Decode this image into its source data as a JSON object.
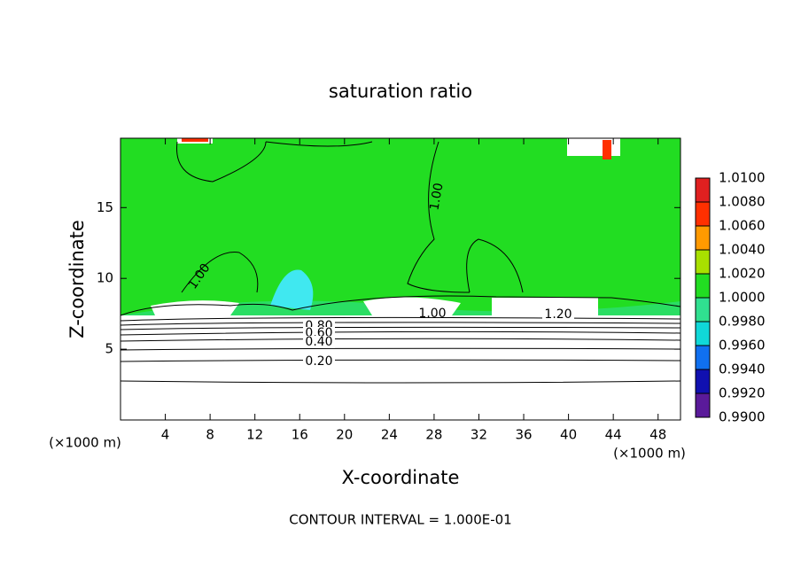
{
  "chart_data": {
    "type": "contour",
    "title": "saturation ratio",
    "x_label": "X-coordinate",
    "y_label": "Z-coordinate",
    "x_unit": "(×1000 m)",
    "y_unit": "(×1000 m)",
    "footer": "CONTOUR INTERVAL = 1.000E-01",
    "xlim": [
      0,
      50
    ],
    "ylim": [
      0,
      19.9
    ],
    "xticks": [
      4,
      8,
      12,
      16,
      20,
      24,
      28,
      32,
      36,
      40,
      44,
      48
    ],
    "yticks": [
      5,
      10,
      15
    ],
    "contour_labels": [
      "1.00",
      "1.00",
      "1.00",
      "1.20",
      "0.80",
      "0.60",
      "0.40",
      "0.20"
    ],
    "colorbar": {
      "lim": [
        0.99,
        1.01
      ],
      "ticks": [
        {
          "value": 0.99,
          "label": "0.9900"
        },
        {
          "value": 0.992,
          "label": "0.9920"
        },
        {
          "value": 0.994,
          "label": "0.9940"
        },
        {
          "value": 0.996,
          "label": "0.9960"
        },
        {
          "value": 0.998,
          "label": "0.9980"
        },
        {
          "value": 1.0,
          "label": "1.0000"
        },
        {
          "value": 1.002,
          "label": "1.0020"
        },
        {
          "value": 1.004,
          "label": "1.0040"
        },
        {
          "value": 1.006,
          "label": "1.0060"
        },
        {
          "value": 1.008,
          "label": "1.0080"
        },
        {
          "value": 1.01,
          "label": "1.0100"
        }
      ],
      "colors": [
        "#5a1a9a",
        "#1010b0",
        "#1070f0",
        "#10d8d8",
        "#30e090",
        "#22dd22",
        "#a8e000",
        "#ff9a00",
        "#ff3000",
        "#e02020"
      ]
    }
  }
}
